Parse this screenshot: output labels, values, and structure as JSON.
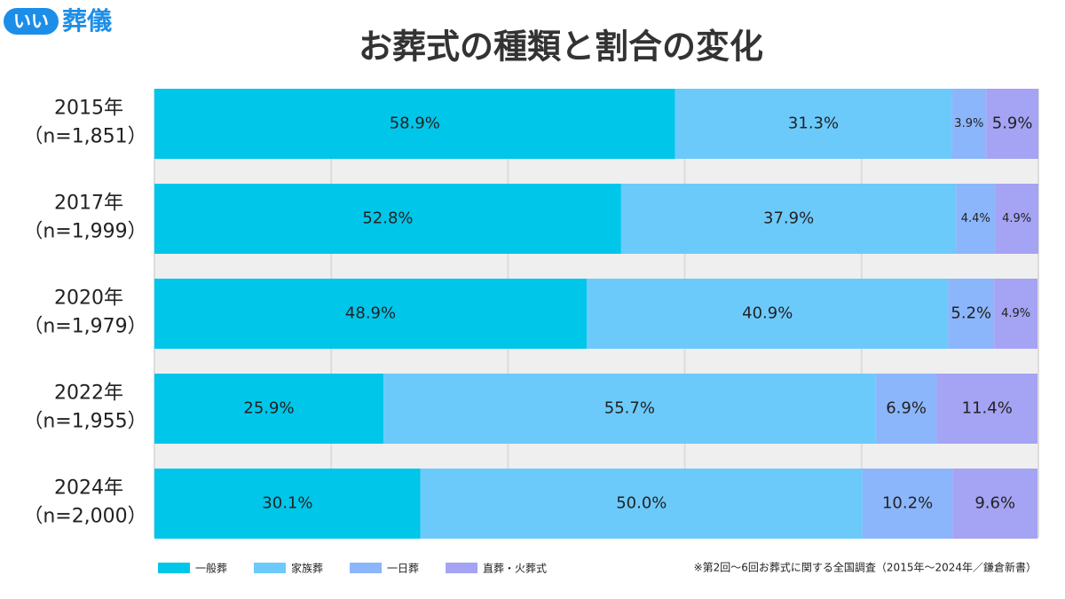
{
  "logo": {
    "badge": "いい",
    "text": "葬儀"
  },
  "chart_data": {
    "type": "stacked-barh",
    "title": "お葬式の種類と割合の変化",
    "categories": [
      "2015年",
      "2017年",
      "2020年",
      "2022年",
      "2024年"
    ],
    "sample_sizes": [
      "（n=1,851）",
      "（n=1,999）",
      "（n=1,979）",
      "（n=1,955）",
      "（n=2,000）"
    ],
    "series": [
      {
        "name": "一般葬",
        "color": "#00c6ea",
        "values": [
          58.9,
          52.8,
          48.9,
          25.9,
          30.1
        ],
        "value_labels": [
          "58.9%",
          "52.8%",
          "48.9%",
          "25.9%",
          "30.1%"
        ]
      },
      {
        "name": "家族葬",
        "color": "#6ccafb",
        "values": [
          31.3,
          37.9,
          40.9,
          55.7,
          50.0
        ],
        "value_labels": [
          "31.3%",
          "37.9%",
          "40.9%",
          "55.7%",
          "50.0%"
        ]
      },
      {
        "name": "一日葬",
        "color": "#8cb6fb",
        "values": [
          3.9,
          4.4,
          5.2,
          6.9,
          10.2
        ],
        "value_labels": [
          "3.9%",
          "4.4%",
          "5.2%",
          "6.9%",
          "10.2%"
        ]
      },
      {
        "name": "直葬・火葬式",
        "color": "#a5a3f3",
        "values": [
          5.9,
          4.9,
          4.9,
          11.4,
          9.6
        ],
        "value_labels": [
          "5.9%",
          "4.9%",
          "4.9%",
          "11.4%",
          "9.6%"
        ]
      }
    ],
    "xlim": [
      0,
      100
    ],
    "xticks": [
      0,
      20,
      40,
      60,
      80,
      100
    ],
    "grid": true,
    "source": "※第2回〜6回お葬式に関する全国調査（2015年〜2024年／鎌倉新書）"
  }
}
